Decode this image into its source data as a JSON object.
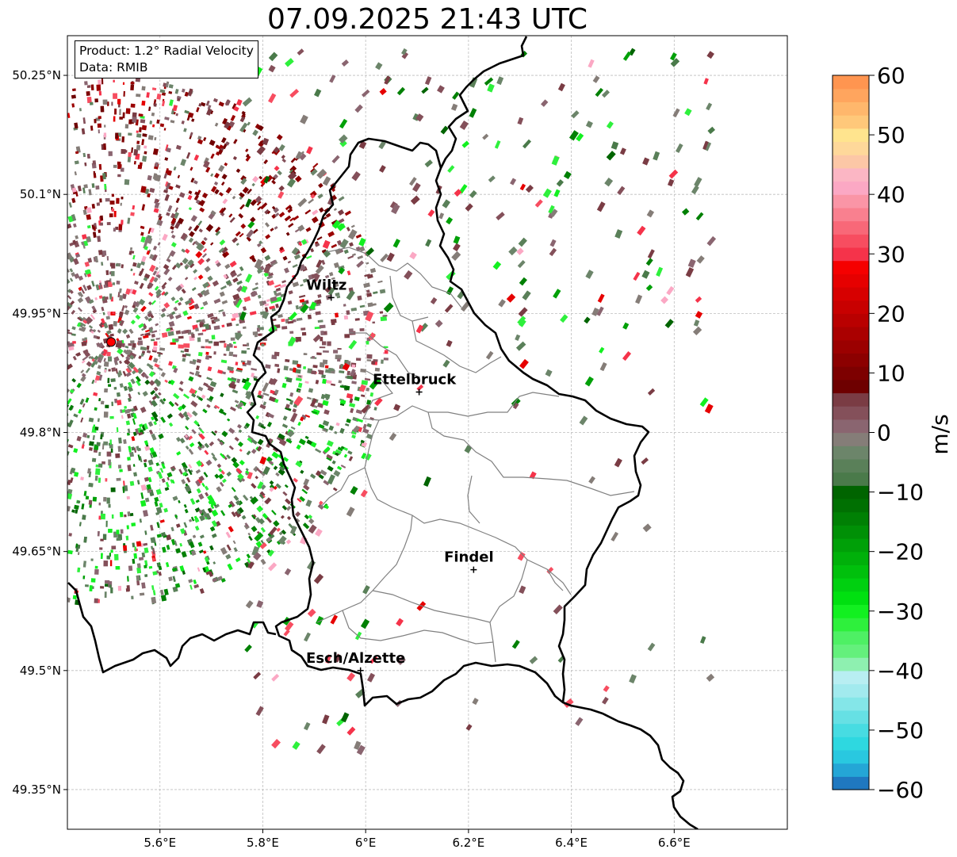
{
  "title": "07.09.2025 21:43 UTC",
  "info": {
    "product_line": "Product: 1.2° Radial Velocity",
    "data_line": "Data: RMIB"
  },
  "map": {
    "lon_range": [
      5.42,
      6.82
    ],
    "lat_range": [
      49.3,
      50.3
    ],
    "lon_ticks": [
      {
        "v": 5.6,
        "label": "5.6°E"
      },
      {
        "v": 5.8,
        "label": "5.8°E"
      },
      {
        "v": 6.0,
        "label": "6°E"
      },
      {
        "v": 6.2,
        "label": "6.2°E"
      },
      {
        "v": 6.4,
        "label": "6.4°E"
      },
      {
        "v": 6.6,
        "label": "6.6°E"
      }
    ],
    "lat_ticks": [
      {
        "v": 50.25,
        "label": "50.25°N"
      },
      {
        "v": 50.1,
        "label": "50.1°N"
      },
      {
        "v": 49.95,
        "label": "49.95°N"
      },
      {
        "v": 49.8,
        "label": "49.8°N"
      },
      {
        "v": 49.65,
        "label": "49.65°N"
      },
      {
        "v": 49.5,
        "label": "49.5°N"
      },
      {
        "v": 49.35,
        "label": "49.35°N"
      }
    ],
    "grid": true,
    "radar_site": {
      "lon": 5.505,
      "lat": 49.914,
      "color": "#ff0000"
    },
    "cities": [
      {
        "name": "Wiltz",
        "lon": 5.933,
        "lat": 49.97
      },
      {
        "name": "Ettelbruck",
        "lon": 6.104,
        "lat": 49.851
      },
      {
        "name": "Findel",
        "lon": 6.21,
        "lat": 49.627
      },
      {
        "name": "Esch/Alzette",
        "lon": 5.99,
        "lat": 49.5
      }
    ]
  },
  "colorbar": {
    "label": "m/s",
    "min": -60,
    "max": 60,
    "ticks": [
      {
        "v": 60,
        "label": "60"
      },
      {
        "v": 50,
        "label": "50"
      },
      {
        "v": 40,
        "label": "40"
      },
      {
        "v": 30,
        "label": "30"
      },
      {
        "v": 20,
        "label": "20"
      },
      {
        "v": 10,
        "label": "10"
      },
      {
        "v": 0,
        "label": "0"
      },
      {
        "v": -10,
        "label": "−10"
      },
      {
        "v": -20,
        "label": "−20"
      },
      {
        "v": -30,
        "label": "−30"
      },
      {
        "v": -40,
        "label": "−40"
      },
      {
        "v": -50,
        "label": "−50"
      },
      {
        "v": -60,
        "label": "−60"
      }
    ],
    "colors_bottom_to_top": [
      "#1f78c0",
      "#24a6d6",
      "#29c8e0",
      "#2ed8e0",
      "#47dce2",
      "#66e0e4",
      "#84e6e8",
      "#a2eaee",
      "#b8eef2",
      "#8ef0b0",
      "#64f07c",
      "#4ef064",
      "#2ef03c",
      "#12f020",
      "#00e010",
      "#00d010",
      "#00c00c",
      "#00b00a",
      "#00a008",
      "#009006",
      "#008004",
      "#007002",
      "#006400",
      "#4a7a4a",
      "#5a8059",
      "#6c856a",
      "#857d78",
      "#8a6570",
      "#84505a",
      "#7a3c44",
      "#6e0000",
      "#7d0000",
      "#8c0000",
      "#9b0000",
      "#aa0000",
      "#b90000",
      "#c80000",
      "#d70000",
      "#e60000",
      "#f50000",
      "#f5334a",
      "#f74d60",
      "#f86878",
      "#f9808f",
      "#fa95a6",
      "#fba8c4",
      "#fbb6c4",
      "#fcc7a6",
      "#fed89a",
      "#ffe48e",
      "#ffc87a",
      "#ffb76c",
      "#ffa55e",
      "#ff9550"
    ]
  }
}
